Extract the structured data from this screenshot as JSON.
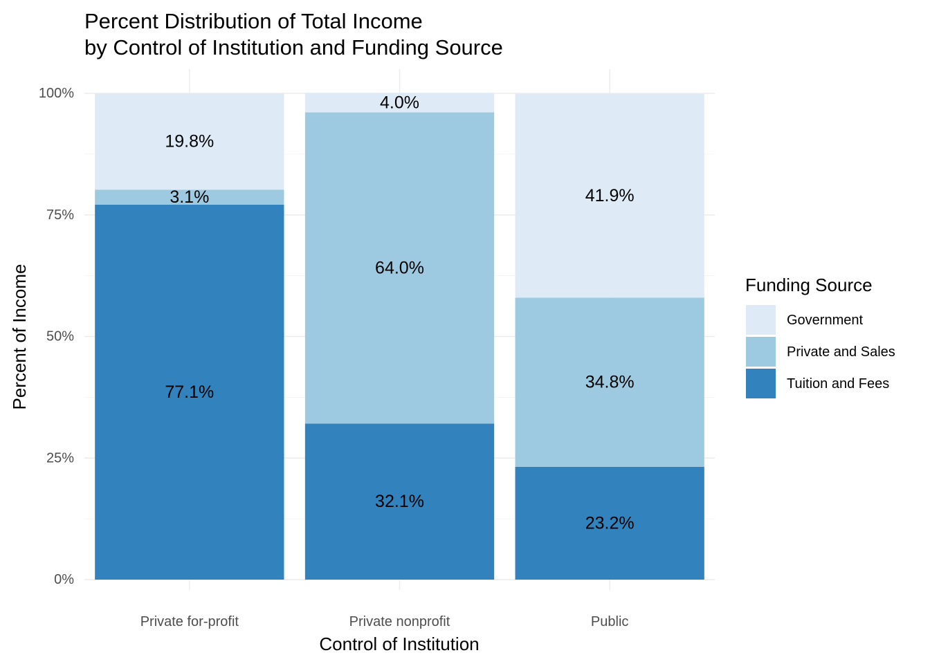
{
  "chart_data": {
    "type": "bar",
    "stacked": true,
    "title_lines": [
      "Percent Distribution of Total Income",
      "by Control of Institution and Funding Source"
    ],
    "xlabel": "Control of Institution",
    "ylabel": "Percent of Income",
    "categories": [
      "Private for-profit",
      "Private nonprofit",
      "Public"
    ],
    "ylim": [
      0,
      100
    ],
    "y_ticks": [
      0,
      25,
      50,
      75,
      100
    ],
    "y_tick_labels": [
      "0%",
      "25%",
      "50%",
      "75%",
      "100%"
    ],
    "grid": true,
    "legend": {
      "title": "Funding Source",
      "position": "right",
      "entries": [
        "Government",
        "Private and Sales",
        "Tuition and Fees"
      ]
    },
    "series": [
      {
        "name": "Tuition and Fees",
        "color": "#3182bd",
        "values": [
          77.1,
          32.1,
          23.2
        ],
        "labels": [
          "77.1%",
          "32.1%",
          "23.2%"
        ]
      },
      {
        "name": "Private and Sales",
        "color": "#9ecae1",
        "values": [
          3.1,
          64.0,
          34.8
        ],
        "labels": [
          "3.1%",
          "64.0%",
          "34.8%"
        ]
      },
      {
        "name": "Government",
        "color": "#deebf7",
        "values": [
          19.8,
          4.0,
          41.9
        ],
        "labels": [
          "19.8%",
          "4.0%",
          "41.9%"
        ]
      }
    ]
  }
}
